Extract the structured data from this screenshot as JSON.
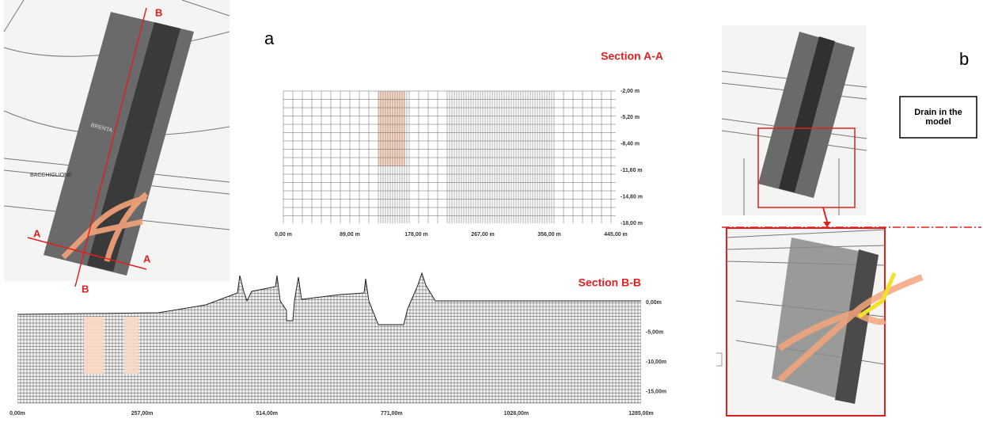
{
  "panel_a": {
    "label": "a",
    "map": {
      "labels": [
        "B",
        "B",
        "A",
        "A",
        "BRENTA",
        "BACCHIGLIONE"
      ]
    },
    "section_aa": {
      "title": "Section A-A",
      "x_labels": [
        "0,00 m",
        "89,00 m",
        "178,00 m",
        "267,00 m",
        "356,00 m",
        "445,00 m"
      ],
      "y_labels": [
        "-2,00 m",
        "-5,20 m",
        "-8,40 m",
        "-11,60 m",
        "-14,80 m",
        "-18,00 m"
      ]
    },
    "section_bb": {
      "title": "Section B-B",
      "x_labels": [
        "0,00m",
        "257,00m",
        "514,00m",
        "771,00m",
        "1028,00m",
        "1285,00m"
      ],
      "y_labels": [
        "0,00m",
        "-5,00m",
        "-10,00m",
        "-15,00m"
      ]
    }
  },
  "panel_b": {
    "label": "b",
    "callout": "Drain in the model"
  }
}
